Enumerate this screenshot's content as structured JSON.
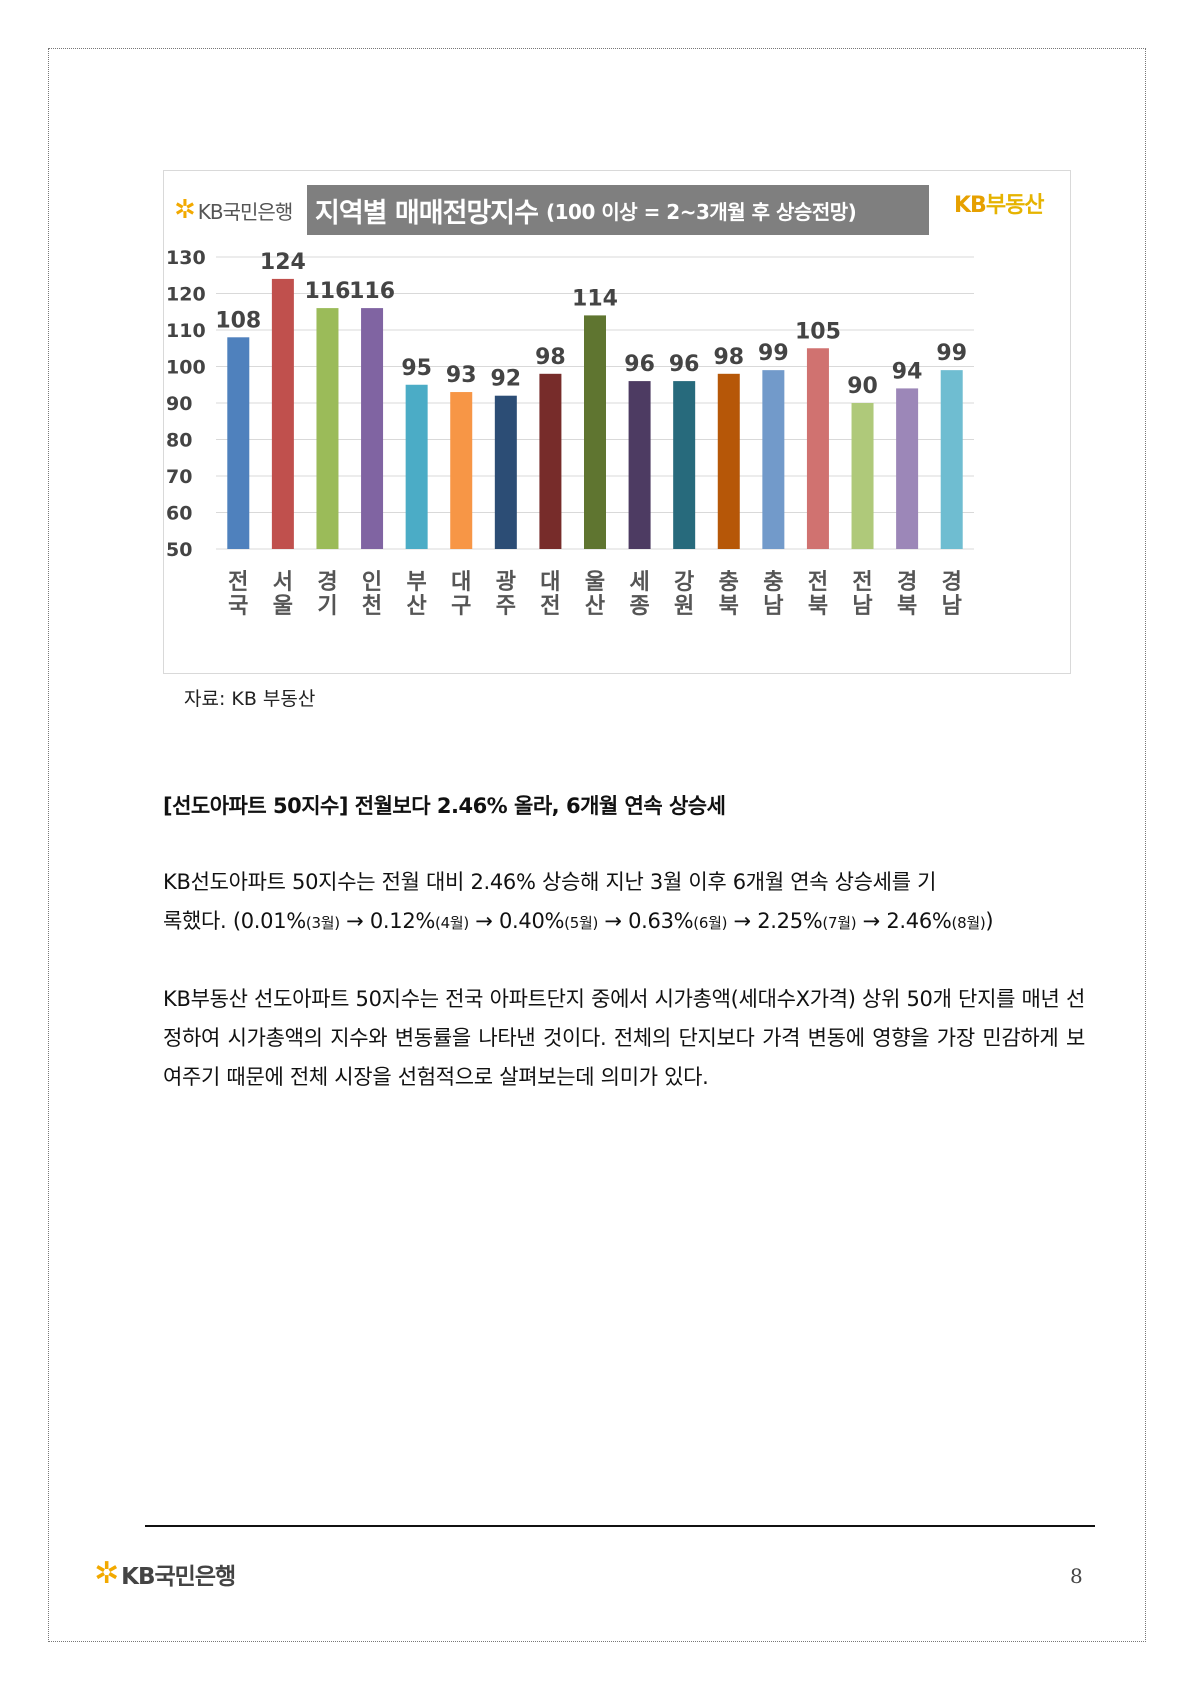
{
  "chart": {
    "logo_text": "KB국민은행",
    "title_main": "지역별 매매전망지수",
    "title_sub": "(100 이상 = 2~3개월 후 상승전망)",
    "brand_kb": "KB",
    "brand_name": "부동산"
  },
  "chart_data": {
    "type": "bar",
    "categories": [
      [
        "전",
        "국"
      ],
      [
        "서",
        "울"
      ],
      [
        "경",
        "기"
      ],
      [
        "인",
        "천"
      ],
      [
        "부",
        "산"
      ],
      [
        "대",
        "구"
      ],
      [
        "광",
        "주"
      ],
      [
        "대",
        "전"
      ],
      [
        "울",
        "산"
      ],
      [
        "세",
        "종"
      ],
      [
        "강",
        "원"
      ],
      [
        "충",
        "북"
      ],
      [
        "충",
        "남"
      ],
      [
        "전",
        "북"
      ],
      [
        "전",
        "남"
      ],
      [
        "경",
        "북"
      ],
      [
        "경",
        "남"
      ]
    ],
    "values": [
      108,
      124,
      116,
      116,
      95,
      93,
      92,
      98,
      114,
      96,
      96,
      98,
      99,
      105,
      90,
      94,
      99
    ],
    "colors": [
      "#4f81bd",
      "#c0504d",
      "#9bbb59",
      "#8064a2",
      "#4bacc6",
      "#f79646",
      "#2c4d75",
      "#772c2a",
      "#5f7530",
      "#4d3b62",
      "#276a7c",
      "#b65708",
      "#729aca",
      "#d07270",
      "#afc97a",
      "#9c87b8",
      "#6fbdd1"
    ],
    "yticks": [
      130,
      120,
      110,
      100,
      90,
      80,
      70,
      60,
      50
    ],
    "ylim": [
      50,
      130
    ],
    "grid": true,
    "title": "지역별 매매전망지수"
  },
  "source": "자료: KB 부동산",
  "heading": "[선도아파트 50지수] 전월보다 2.46% 올라, 6개월 연속 상승세",
  "paragraph1": {
    "line1": "KB선도아파트 50지수는 전월 대비 2.46% 상승해 지난 3월 이후 6개월 연속 상승세를 기",
    "line2_prefix": "록했다. ",
    "steps": [
      {
        "pct": "(0.01%",
        "month": "(3월)"
      },
      {
        "pct": "0.12%",
        "month": "(4월)"
      },
      {
        "pct": "0.40%",
        "month": "(5월)"
      },
      {
        "pct": "0.63%",
        "month": "(6월)"
      },
      {
        "pct": "2.25%",
        "month": "(7월)"
      },
      {
        "pct": "2.46%",
        "month": "(8월)"
      }
    ],
    "arrow": "→",
    "close": ")"
  },
  "paragraph2": "KB부동산 선도아파트 50지수는 전국 아파트단지 중에서 시가총액(세대수X가격) 상위 50개 단지를 매년 선정하여 시가총액의 지수와 변동률을 나타낸 것이다. 전체의 단지보다 가격 변동에 영향을 가장 민감하게 보여주기 때문에 전체 시장을 선험적으로 살펴보는데 의미가 있다.",
  "footer": {
    "logo_text": "KB국민은행",
    "page_number": "8"
  }
}
